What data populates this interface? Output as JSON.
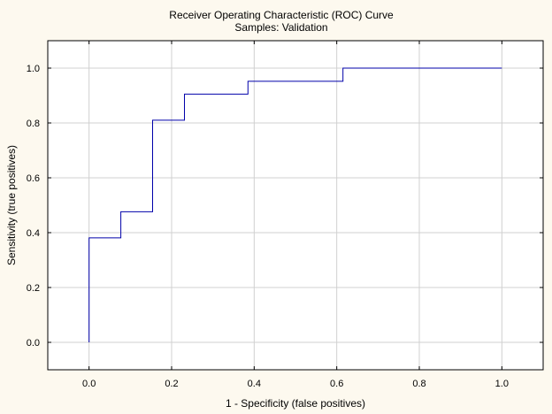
{
  "chart_data": {
    "type": "line",
    "title": "Receiver Operating Characteristic (ROC) Curve",
    "subtitle": "Samples: Validation",
    "xlabel": "1 - Specificity (false positives)",
    "ylabel": "Sensitivity (true positives)",
    "xlim": [
      -0.1,
      1.1
    ],
    "ylim": [
      -0.1,
      1.1
    ],
    "xticks": [
      "0.0",
      "0.2",
      "0.4",
      "0.6",
      "0.8",
      "1.0"
    ],
    "yticks": [
      "0.0",
      "0.2",
      "0.4",
      "0.6",
      "0.8",
      "1.0"
    ],
    "grid": true,
    "line_style": "step",
    "colors": {
      "line": "#0000aa",
      "grid": "#d0d0d0",
      "background": "#fdf9ef",
      "plot_area": "#ffffff"
    },
    "series": [
      {
        "x": [
          0.0,
          0.0,
          0.077,
          0.077,
          0.154,
          0.154,
          0.231,
          0.231,
          0.385,
          0.385,
          0.615,
          0.615,
          1.0
        ],
        "y": [
          0.0,
          0.381,
          0.381,
          0.476,
          0.476,
          0.81,
          0.81,
          0.905,
          0.905,
          0.952,
          0.952,
          1.0,
          1.0
        ]
      }
    ]
  }
}
